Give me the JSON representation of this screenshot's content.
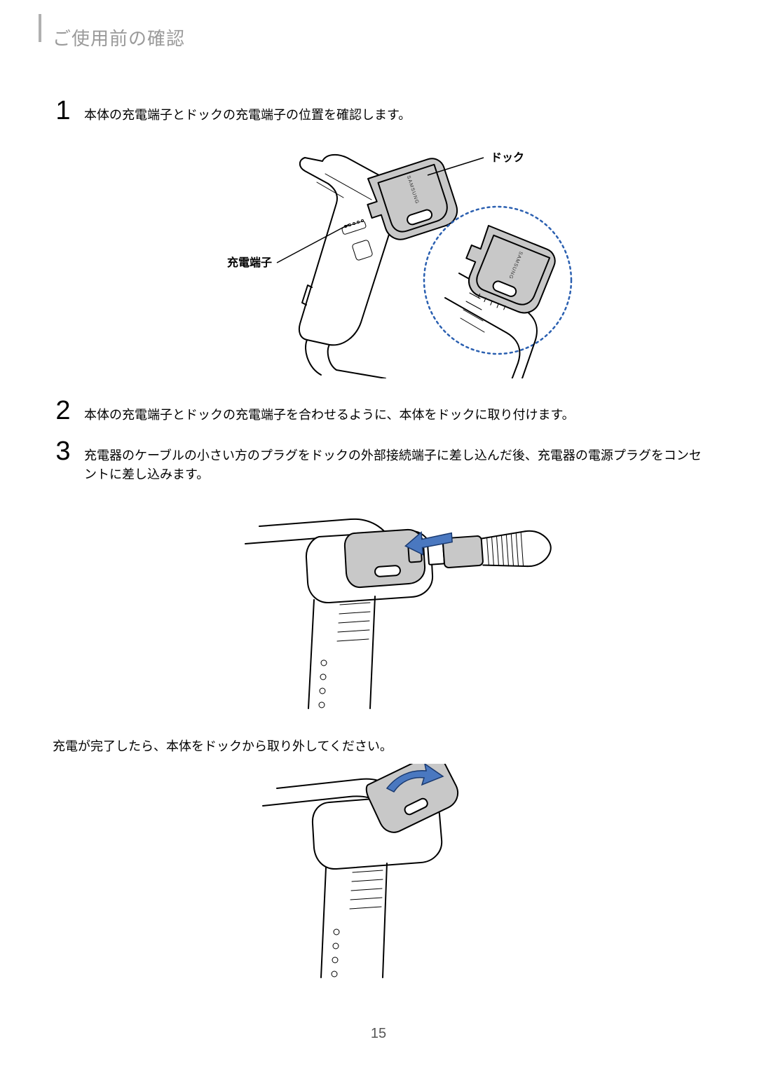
{
  "header": {
    "title": "ご使用前の確認"
  },
  "steps": {
    "s1": {
      "num": "1",
      "text": "本体の充電端子とドックの充電端子の位置を確認します。"
    },
    "s2": {
      "num": "2",
      "text": "本体の充電端子とドックの充電端子を合わせるように、本体をドックに取り付けます。"
    },
    "s3": {
      "num": "3",
      "text": "充電器のケーブルの小さい方のプラグをドックの外部接続端子に差し込んだ後、充電器の電源プラグをコンセントに差し込みます。"
    }
  },
  "callouts": {
    "dock": "ドック",
    "terminal": "充電端子"
  },
  "body": {
    "after_charge": "充電が完了したら、本体をドックから取り外してください。"
  },
  "page": {
    "number": "15"
  },
  "colors": {
    "header_text": "#9a9a9a",
    "header_marker": "#b0b0b0",
    "dock_fill": "#c8c8c8",
    "dotted_stroke": "#2a5fb0",
    "arrow_fill": "#4a78c0",
    "arrow_stroke": "#1a3a70",
    "body_text": "#000000",
    "background": "#ffffff"
  }
}
